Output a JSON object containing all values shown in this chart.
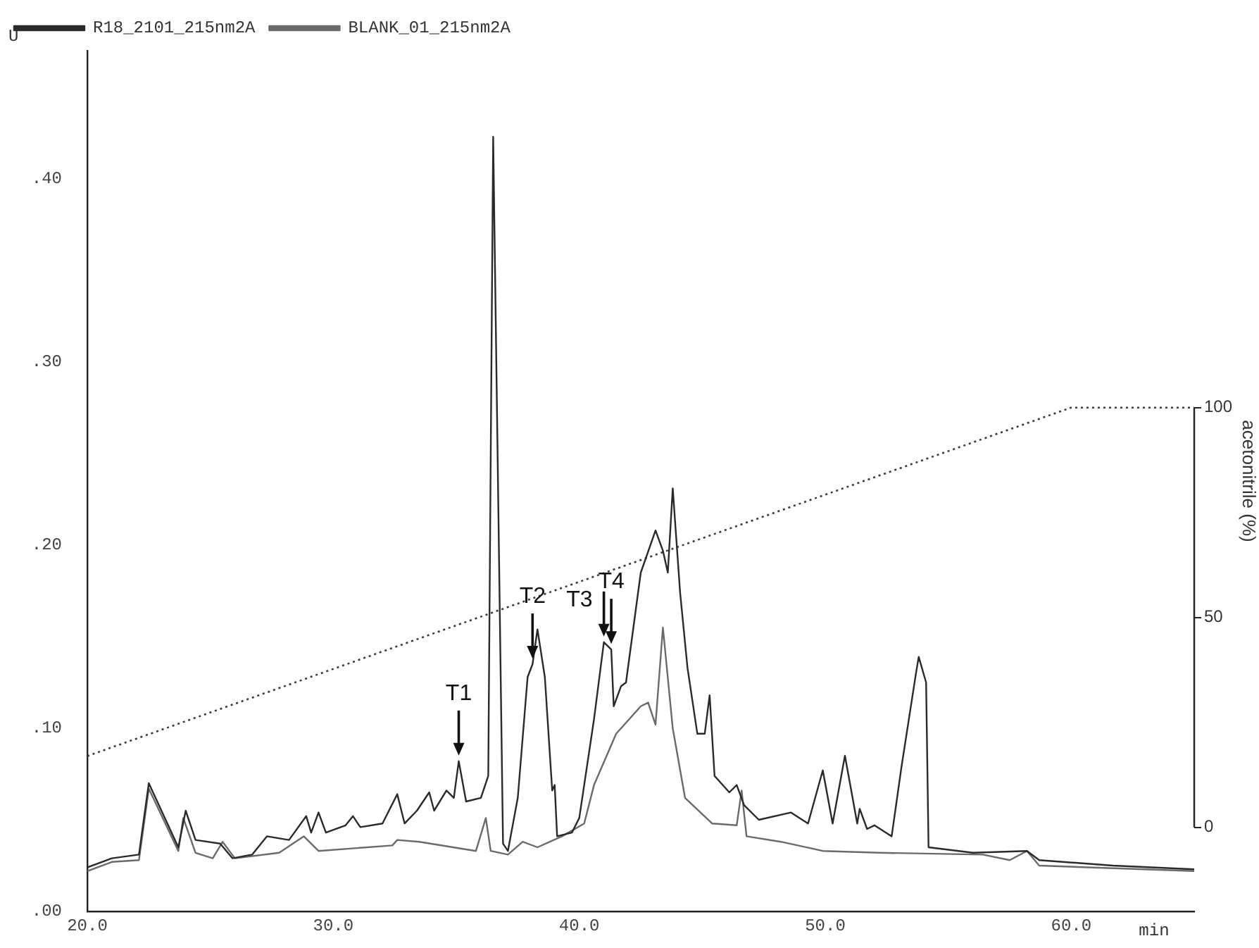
{
  "chart_data": {
    "type": "line",
    "ylabel": "U",
    "xlabel": "min",
    "y2label": "acetonitrile (%)",
    "legend": "top left",
    "grid": false,
    "marker": "none",
    "line_style": "solid",
    "xlim": [
      20,
      65
    ],
    "xticks": [
      {
        "value": 20,
        "label": "20.0"
      },
      {
        "value": 30,
        "label": "30.0"
      },
      {
        "value": 40,
        "label": "40.0"
      },
      {
        "value": 50,
        "label": "50.0"
      },
      {
        "value": 60,
        "label": "60.0"
      }
    ],
    "ylim": [
      0,
      0.47
    ],
    "yticks": [
      {
        "value": 0,
        "label": ".00"
      },
      {
        "value": 0.1,
        "label": ".10"
      },
      {
        "value": 0.2,
        "label": ".20"
      },
      {
        "value": 0.3,
        "label": ".30"
      },
      {
        "value": 0.4,
        "label": ".40"
      }
    ],
    "y2lim": [
      -20,
      185
    ],
    "y2ticks": [
      0,
      50,
      100
    ],
    "annotations": [
      {
        "text": "T1",
        "x": 35.1,
        "y": 0.082
      },
      {
        "text": "T2",
        "x": 38.1,
        "y": 0.135
      },
      {
        "text": "T3",
        "x": 41.0,
        "y": 0.147
      },
      {
        "text": "T4",
        "x": 41.3,
        "y": 0.143
      }
    ],
    "series": [
      {
        "name": "R18_2101_215nm2A",
        "color": "#2a2a2a",
        "x": [
          20.0,
          21.0,
          22.1,
          22.5,
          23.7,
          24.0,
          24.4,
          25.4,
          25.9,
          26.7,
          27.3,
          28.2,
          28.9,
          29.1,
          29.4,
          29.7,
          30.5,
          30.8,
          31.1,
          32.0,
          32.6,
          32.9,
          33.4,
          33.9,
          34.1,
          34.6,
          34.9,
          35.1,
          35.4,
          36.0,
          36.3,
          36.5,
          36.9,
          37.1,
          37.5,
          37.9,
          38.1,
          38.3,
          38.6,
          38.9,
          39.0,
          39.1,
          39.7,
          40.0,
          40.6,
          41.0,
          41.3,
          41.4,
          41.7,
          41.9,
          42.5,
          43.1,
          43.4,
          43.6,
          43.8,
          44.1,
          44.4,
          44.8,
          45.1,
          45.3,
          45.5,
          46.1,
          46.4,
          46.7,
          47.3,
          48.6,
          49.3,
          49.9,
          50.3,
          50.8,
          51.3,
          51.4,
          51.7,
          52.0,
          52.7,
          53.1,
          53.7,
          53.8,
          54.1,
          54.2,
          56.0,
          58.2,
          58.7,
          61.7,
          65.0
        ],
        "values": [
          0.024,
          0.029,
          0.031,
          0.07,
          0.035,
          0.055,
          0.039,
          0.037,
          0.029,
          0.031,
          0.041,
          0.039,
          0.052,
          0.043,
          0.054,
          0.043,
          0.047,
          0.052,
          0.046,
          0.048,
          0.064,
          0.048,
          0.055,
          0.065,
          0.055,
          0.066,
          0.062,
          0.082,
          0.06,
          0.062,
          0.074,
          0.423,
          0.037,
          0.033,
          0.062,
          0.128,
          0.135,
          0.154,
          0.128,
          0.066,
          0.069,
          0.041,
          0.043,
          0.051,
          0.105,
          0.147,
          0.143,
          0.112,
          0.123,
          0.125,
          0.185,
          0.208,
          0.197,
          0.185,
          0.231,
          0.174,
          0.133,
          0.097,
          0.097,
          0.118,
          0.074,
          0.065,
          0.069,
          0.058,
          0.05,
          0.054,
          0.048,
          0.077,
          0.048,
          0.085,
          0.048,
          0.056,
          0.045,
          0.047,
          0.041,
          0.079,
          0.131,
          0.139,
          0.125,
          0.035,
          0.032,
          0.033,
          0.028,
          0.025,
          0.023
        ]
      },
      {
        "name": "BLANK_01_215nm2A",
        "color": "#6a6a6a",
        "x": [
          20.0,
          21.0,
          22.1,
          22.5,
          23.7,
          23.9,
          24.4,
          25.1,
          25.5,
          26.0,
          27.8,
          28.8,
          29.4,
          32.4,
          32.6,
          33.5,
          35.8,
          36.2,
          36.4,
          37.1,
          37.7,
          38.3,
          39.3,
          40.2,
          40.6,
          41.5,
          42.5,
          42.8,
          43.1,
          43.4,
          43.8,
          44.3,
          45.4,
          46.4,
          46.6,
          46.8,
          48.2,
          49.9,
          52.2,
          56.4,
          57.5,
          58.2,
          58.7,
          65.0
        ],
        "values": [
          0.022,
          0.027,
          0.028,
          0.067,
          0.033,
          0.051,
          0.032,
          0.029,
          0.038,
          0.029,
          0.032,
          0.041,
          0.033,
          0.036,
          0.039,
          0.038,
          0.033,
          0.051,
          0.033,
          0.031,
          0.038,
          0.035,
          0.041,
          0.048,
          0.069,
          0.097,
          0.112,
          0.114,
          0.102,
          0.155,
          0.1,
          0.062,
          0.048,
          0.047,
          0.066,
          0.041,
          0.038,
          0.033,
          0.032,
          0.031,
          0.028,
          0.033,
          0.025,
          0.022
        ]
      },
      {
        "color": "#3a3a3a",
        "axis": "y2",
        "line_style": "dotted",
        "x": [
          20,
          60,
          65
        ],
        "values": [
          17,
          100,
          100
        ]
      }
    ]
  }
}
